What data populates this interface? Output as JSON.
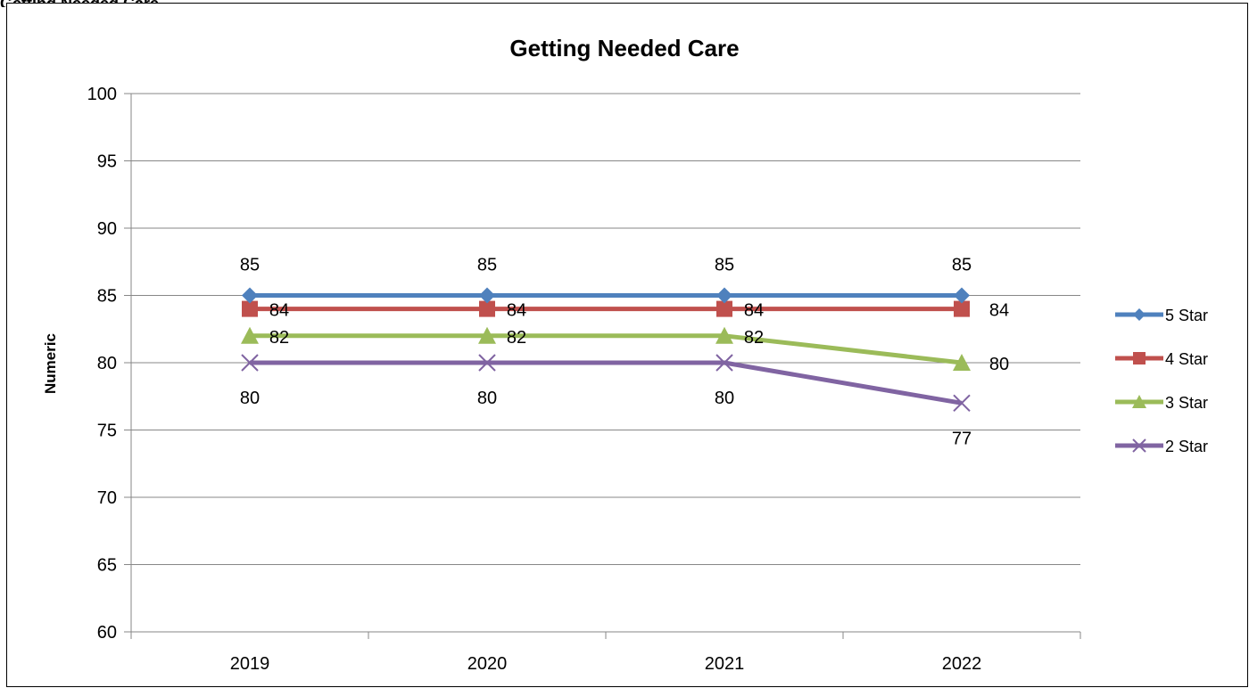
{
  "page_heading": "Getting Needed Care",
  "chart_data": {
    "type": "line",
    "title": "Getting Needed Care",
    "xlabel": "",
    "ylabel": "Numeric",
    "categories": [
      "2019",
      "2020",
      "2021",
      "2022"
    ],
    "ylim": [
      60,
      100
    ],
    "yticks": [
      "60",
      "65",
      "70",
      "75",
      "80",
      "85",
      "90",
      "95",
      "100"
    ],
    "grid": true,
    "legend_position": "right",
    "series": [
      {
        "name": "5 Star",
        "values": [
          85,
          85,
          85,
          85
        ],
        "color": "#4f81bd",
        "marker": "diamond",
        "label_pos": "above"
      },
      {
        "name": "4 Star",
        "values": [
          84,
          84,
          84,
          84
        ],
        "color": "#c0504d",
        "marker": "square",
        "label_pos": "right"
      },
      {
        "name": "3 Star",
        "values": [
          82,
          82,
          82,
          80
        ],
        "color": "#9bbb59",
        "marker": "triangle",
        "label_pos": "right"
      },
      {
        "name": "2 Star",
        "values": [
          80,
          80,
          80,
          77
        ],
        "color": "#8064a2",
        "marker": "x",
        "label_pos": "below"
      }
    ]
  }
}
